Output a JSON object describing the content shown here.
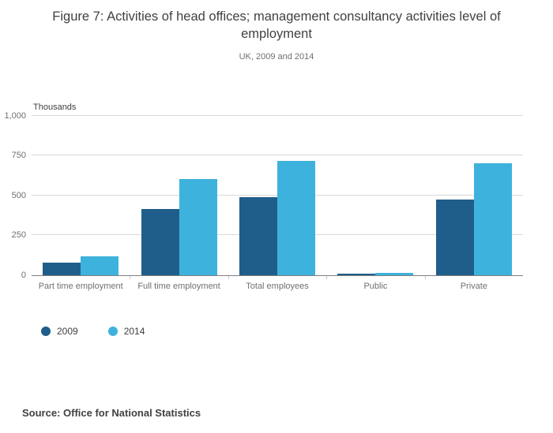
{
  "title": "Figure 7: Activities of head offices; management consultancy activities level of employment",
  "subtitle": "UK, 2009 and 2014",
  "units_label": "Thousands",
  "source": "Source: Office for National Statistics",
  "chart_data": {
    "type": "bar",
    "title": "Figure 7: Activities of head offices; management consultancy activities level of employment",
    "subtitle": "UK, 2009 and 2014",
    "categories": [
      "Part time employment",
      "Full time employment",
      "Total employees",
      "Public",
      "Private"
    ],
    "series": [
      {
        "name": "2009",
        "color": "#1f5e8a",
        "values": [
          78,
          415,
          490,
          10,
          475
        ]
      },
      {
        "name": "2014",
        "color": "#3db2dd",
        "values": [
          115,
          600,
          715,
          12,
          700
        ]
      }
    ],
    "xlabel": "",
    "ylabel": "Thousands",
    "ylim": [
      0,
      1000
    ],
    "yticks": [
      0,
      250,
      500,
      750,
      1000
    ],
    "ytick_labels": [
      "0",
      "250",
      "500",
      "750",
      "1,000"
    ],
    "grid": true,
    "legend_position": "bottom-left"
  }
}
